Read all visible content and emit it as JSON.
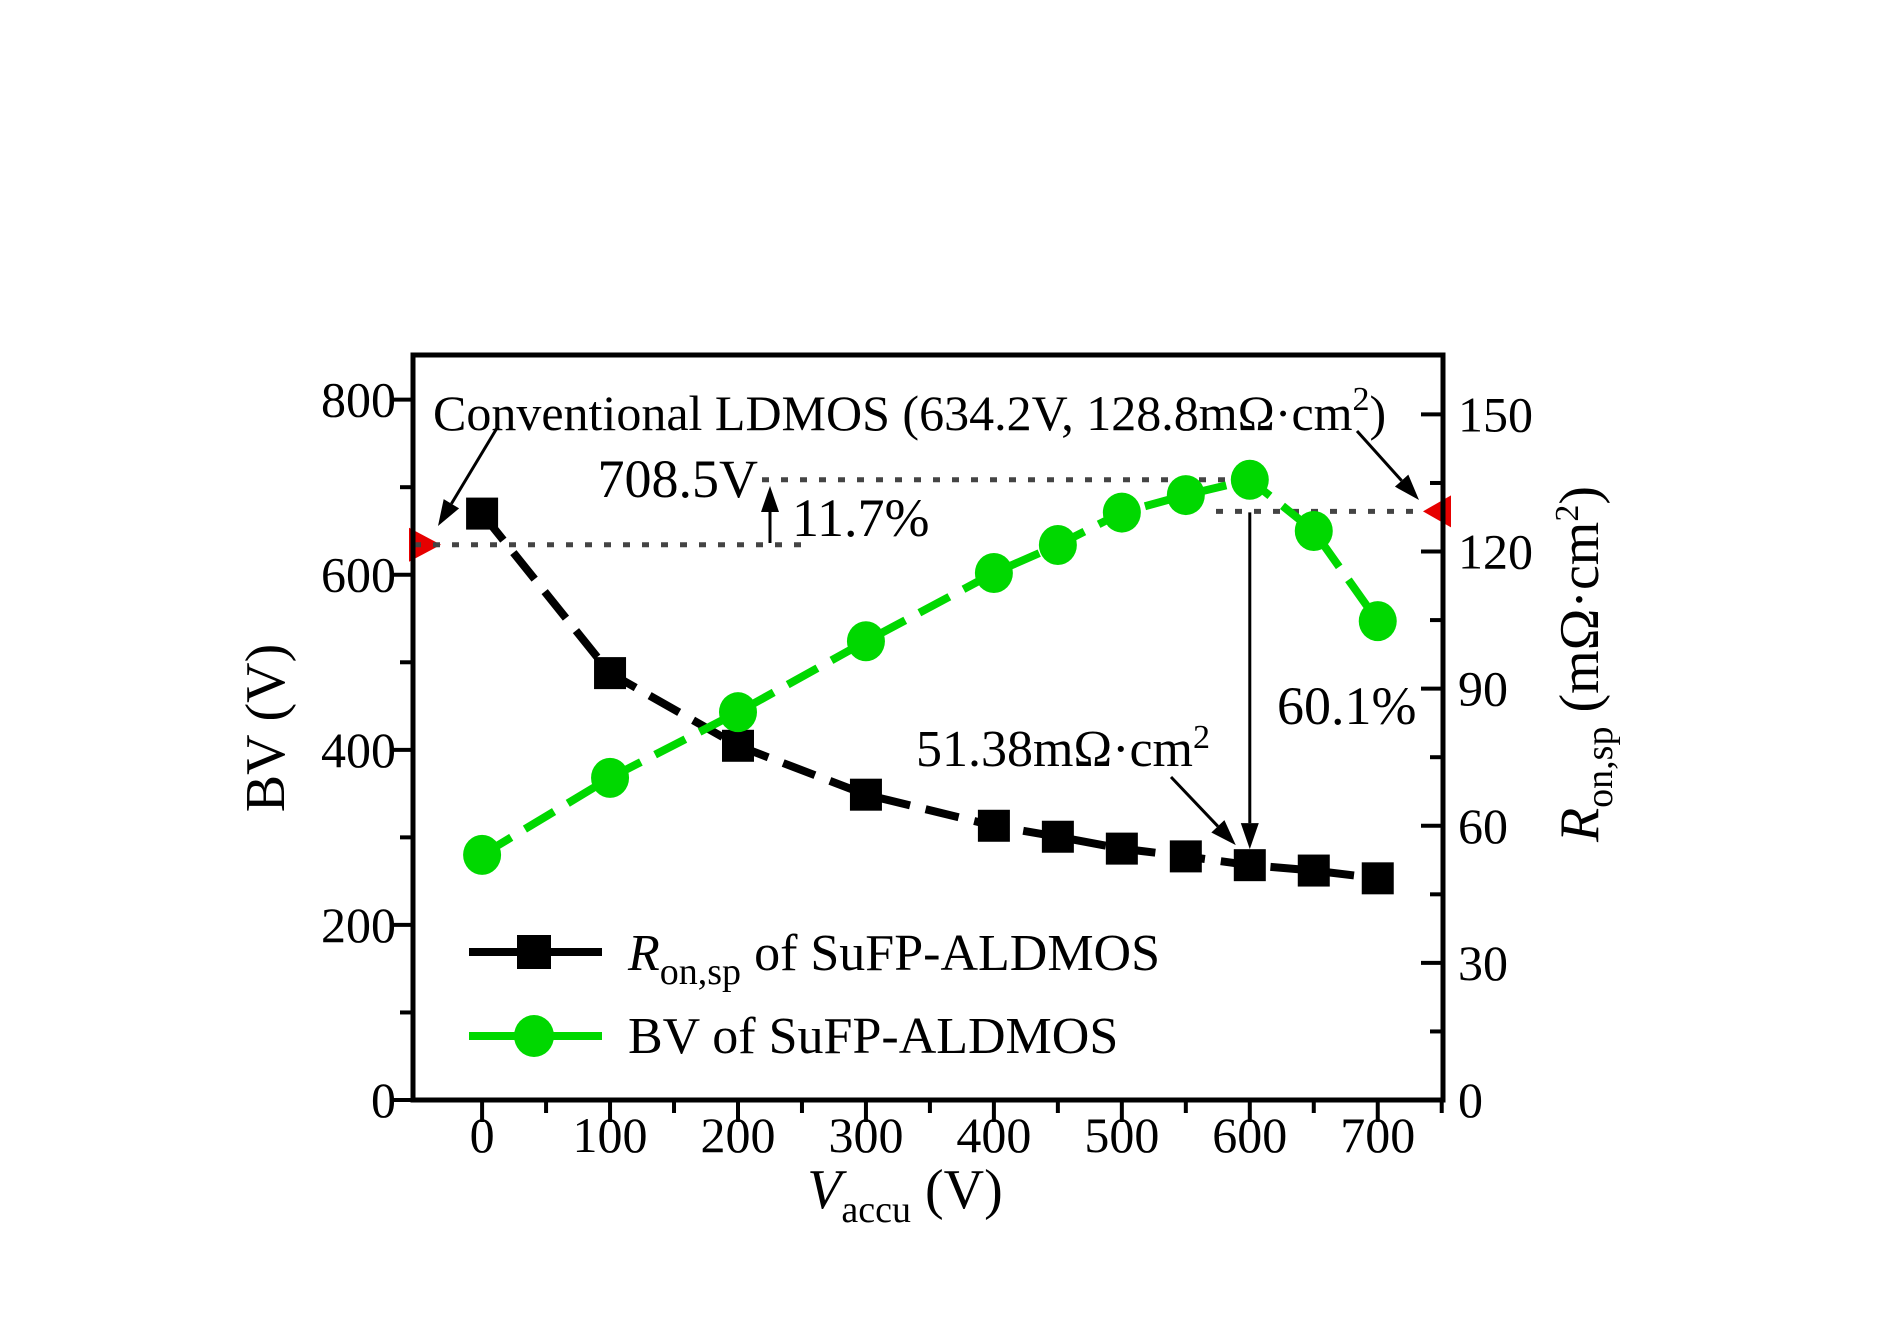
{
  "figure": {
    "title_annotation": {
      "pre": "Conventional LDMOS (634.2V, 128.8mΩ·cm",
      "sup": "2",
      "close": ")"
    },
    "annotations": {
      "bv_peak_label": "708.5V",
      "bv_improvement": "11.7%",
      "ron_best_pre": "51.38mΩ·cm",
      "ron_best_sup": "2",
      "ron_reduction": "60.1%"
    },
    "legend": [
      {
        "marker": "square",
        "color": "#000000",
        "label_pre": "R",
        "label_sub": "on,sp",
        "label_rest": " of SuFP-ALDMOS"
      },
      {
        "marker": "circle",
        "color": "#00d800",
        "label": "BV of SuFP-ALDMOS"
      }
    ],
    "axes": {
      "x": {
        "label_italic": "V",
        "label_sub": "accu",
        "label_rest": " (V)",
        "major_ticks": [
          0,
          100,
          200,
          300,
          400,
          500,
          600,
          700
        ],
        "minor_ticks": [
          50,
          150,
          250,
          350,
          450,
          550,
          650,
          750
        ],
        "lim": [
          -54,
          751
        ]
      },
      "left": {
        "label": "BV (V)",
        "major_ticks": [
          0,
          200,
          400,
          600,
          800
        ],
        "minor_ticks": [
          100,
          300,
          500,
          700
        ],
        "lim": [
          0,
          851
        ]
      },
      "right": {
        "label_italic": "R",
        "label_sub": "on,sp",
        "label_rest": " (mΩ·cm",
        "label_sup": "2",
        "label_close": ")",
        "major_ticks": [
          0,
          30,
          60,
          90,
          120,
          150
        ],
        "minor_ticks": [
          15,
          45,
          75,
          105,
          135
        ],
        "lim": [
          0,
          163
        ]
      }
    },
    "colors": {
      "bv_green": "#00d800",
      "ron_black": "#000000",
      "reference_red": "#e60000",
      "dotted_gray": "#444444"
    }
  },
  "chart_data": {
    "type": "line",
    "x": [
      0,
      100,
      200,
      300,
      400,
      450,
      500,
      550,
      600,
      650,
      700
    ],
    "series": [
      {
        "name": "Ron,sp of SuFP-ALDMOS",
        "axis": "right",
        "color": "#000000",
        "marker": "square",
        "values": [
          128.3,
          93.4,
          77.5,
          66.8,
          60.0,
          57.6,
          55.0,
          53.3,
          51.38,
          50.2,
          48.5
        ]
      },
      {
        "name": "BV of SuFP-ALDMOS",
        "axis": "left",
        "color": "#00d800",
        "marker": "circle",
        "values": [
          280,
          368,
          443,
          524,
          602,
          634,
          671,
          691,
          708.5,
          650,
          547
        ]
      }
    ],
    "title": "Conventional LDMOS (634.2V, 128.8mΩ·cm2)",
    "xlabel": "Vaccu (V)",
    "ylabel_left": "BV (V)",
    "ylabel_right": "Ron,sp (mΩ·cm2)",
    "legend_position": "bottom-left-inside",
    "grid": false,
    "reference_point": {
      "label": "Conventional LDMOS",
      "bv": 634.2,
      "ron": 128.8
    },
    "highlight": {
      "v": 600,
      "bv": 708.5,
      "ron": 51.38,
      "bv_gain_pct": "11.7%",
      "ron_drop_pct": "60.1%"
    }
  }
}
